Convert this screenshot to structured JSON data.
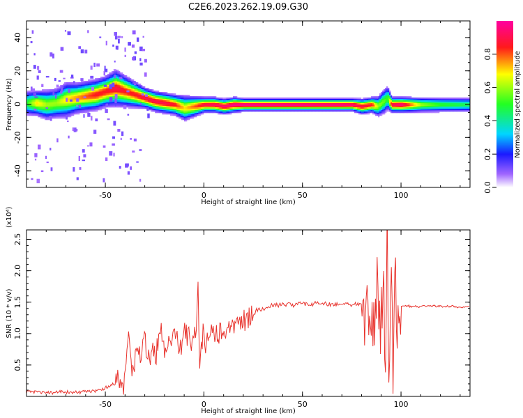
{
  "title": "C2E6.2023.262.19.09.G30",
  "chart_data": [
    {
      "type": "heatmap",
      "xlabel": "Height of straight line (km)",
      "ylabel": "Frequency (Hz)",
      "xlim": [
        -90,
        135
      ],
      "ylim": [
        -50,
        50
      ],
      "xticks": [
        -50,
        0,
        50,
        100
      ],
      "xtick_labels": [
        "-50",
        "0",
        "50",
        "100"
      ],
      "yticks": [
        -40,
        -20,
        0,
        20,
        40
      ],
      "ytick_labels": [
        "-40",
        "-20",
        "0",
        "20",
        "40"
      ],
      "ridge": {
        "x": [
          -90,
          -85,
          -80,
          -75,
          -70,
          -65,
          -60,
          -55,
          -50,
          -45,
          -40,
          -35,
          -30,
          -25,
          -20,
          -15,
          -10,
          -5,
          0,
          5,
          10,
          15,
          20,
          30,
          40,
          50,
          60,
          70,
          75,
          80,
          85,
          88,
          91,
          93,
          95,
          100,
          110,
          120,
          135
        ],
        "y": [
          1,
          1,
          0,
          1,
          3,
          4,
          5,
          6,
          8,
          10,
          8,
          6,
          4,
          2,
          1,
          0,
          -2,
          -1,
          0,
          0,
          -1,
          0,
          0,
          0,
          0,
          0,
          0,
          0,
          0,
          -1,
          0,
          -1,
          2,
          4,
          0,
          0,
          0,
          0,
          0
        ],
        "peak": [
          0.5,
          0.7,
          0.6,
          0.6,
          0.7,
          0.75,
          0.8,
          0.85,
          0.85,
          0.9,
          0.85,
          0.85,
          0.9,
          0.9,
          0.9,
          0.85,
          0.7,
          0.8,
          0.9,
          0.92,
          0.95,
          0.97,
          0.98,
          0.98,
          0.98,
          0.98,
          0.97,
          0.97,
          0.95,
          0.9,
          0.85,
          0.6,
          0.55,
          0.5,
          0.9,
          0.95,
          0.6,
          0.5,
          0.45
        ],
        "width": [
          5,
          5,
          6,
          6,
          7,
          6,
          6,
          6,
          6,
          7,
          6,
          5,
          4,
          4,
          4,
          4,
          5,
          4,
          3,
          3,
          3,
          3,
          2.5,
          2.5,
          2.5,
          2.5,
          2.5,
          2.5,
          2.5,
          3,
          3,
          4,
          5,
          5,
          3,
          3,
          3,
          3,
          3
        ]
      },
      "colorbar": {
        "label": "Normalized spectral amplitude",
        "range": [
          0,
          1
        ],
        "ticks": [
          0.0,
          0.2,
          0.4,
          0.6,
          0.8
        ],
        "tick_labels": [
          "0.0",
          "0.2",
          "0.4",
          "0.6",
          "0.8"
        ],
        "colormap": "rainbow (white-purple-blue-cyan-green-yellow-red-magenta)"
      }
    },
    {
      "type": "line",
      "xlabel": "Height of straight line (km)",
      "ylabel": "SNR (10 * v/v)",
      "y_multiplier_label": "(x10⁴)",
      "xlim": [
        -90,
        135
      ],
      "ylim": [
        0,
        2.65
      ],
      "xticks": [
        -50,
        0,
        50,
        100
      ],
      "xtick_labels": [
        "-50",
        "0",
        "50",
        "100"
      ],
      "yticks": [
        0.5,
        1.0,
        1.5,
        2.0,
        2.5
      ],
      "ytick_labels": [
        "0.5",
        "1.0",
        "1.5",
        "2.0",
        "2.5"
      ],
      "color": "#e8332d",
      "series": [
        {
          "x": [
            -90,
            -85,
            -80,
            -75,
            -70,
            -65,
            -60,
            -55,
            -52,
            -48,
            -45,
            -42,
            -40,
            -38,
            -36,
            -34,
            -32,
            -30,
            -28,
            -26,
            -24,
            -22,
            -20,
            -18,
            -16,
            -14,
            -12,
            -10,
            -8,
            -6,
            -4,
            -3,
            -2,
            -1,
            0,
            2,
            4,
            6,
            8,
            10,
            12,
            14,
            16,
            18,
            20,
            22,
            24,
            26,
            28,
            30,
            35,
            40,
            45,
            50,
            55,
            60,
            65,
            70,
            75,
            80,
            82,
            84,
            86,
            88,
            90,
            91,
            92,
            93,
            94,
            95,
            96,
            97,
            98,
            99,
            100,
            105,
            110,
            115,
            120,
            125,
            130,
            135
          ],
          "y": [
            0.08,
            0.07,
            0.06,
            0.07,
            0.06,
            0.07,
            0.08,
            0.08,
            0.12,
            0.15,
            0.2,
            0.22,
            0.3,
            0.9,
            0.4,
            0.7,
            0.6,
            0.85,
            0.65,
            0.8,
            0.7,
            0.95,
            0.75,
            0.9,
            0.85,
            1.0,
            0.8,
            1.25,
            0.9,
            0.95,
            1.05,
            1.75,
            0.35,
            1.0,
            0.9,
            0.85,
            1.1,
            1.0,
            1.05,
            0.95,
            1.15,
            1.0,
            1.2,
            1.1,
            1.2,
            1.25,
            1.3,
            1.35,
            1.38,
            1.4,
            1.45,
            1.47,
            1.46,
            1.47,
            1.48,
            1.47,
            1.46,
            1.47,
            1.46,
            1.48,
            1.35,
            1.6,
            1.3,
            1.7,
            1.1,
            2.0,
            0.2,
            2.6,
            0.05,
            2.5,
            0.3,
            1.9,
            1.2,
            1.6,
            1.45,
            1.44,
            1.43,
            1.44,
            1.43,
            1.44,
            1.42,
            1.43
          ]
        }
      ]
    }
  ]
}
